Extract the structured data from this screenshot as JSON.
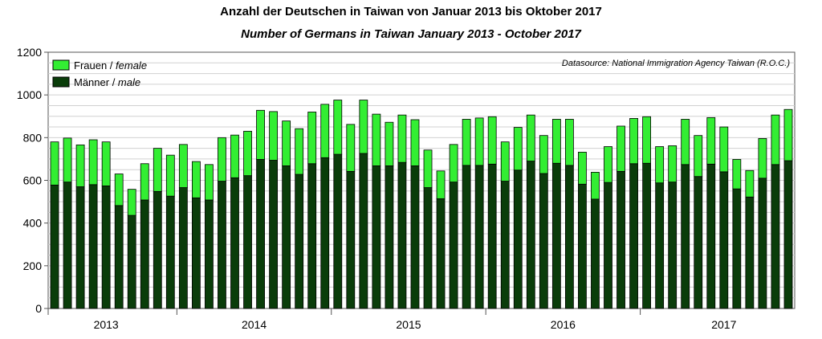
{
  "chart_data": {
    "type": "bar",
    "stacked": true,
    "title": "Anzahl der Deutschen in Taiwan von Januar 2013 bis Oktober 2017",
    "subtitle": "Number of Germans in Taiwan January 2013 - October 2017",
    "source": "Datasource: National Immigration Agency Taiwan (R.O.C.)",
    "ylim": [
      0,
      1200
    ],
    "yticks": [
      "0",
      "200",
      "400",
      "600",
      "800",
      "1000",
      "1200"
    ],
    "year_labels": [
      "2013",
      "2014",
      "2015",
      "2016",
      "2017"
    ],
    "legend_position": "top-left",
    "grid": true,
    "colors": {
      "female": "#33ee33",
      "male": "#0a3d0a",
      "border": "#000000"
    },
    "series": [
      {
        "name": "Männer / male",
        "legend_main": "Männer / ",
        "legend_italic": "male",
        "values": [
          578,
          592,
          570,
          580,
          574,
          482,
          436,
          508,
          548,
          526,
          566,
          518,
          508,
          596,
          612,
          622,
          698,
          694,
          668,
          628,
          678,
          706,
          722,
          642,
          726,
          668,
          668,
          684,
          668,
          566,
          514,
          592,
          670,
          670,
          676,
          596,
          648,
          690,
          632,
          680,
          670,
          582,
          512,
          590,
          642,
          678,
          680,
          588,
          592,
          674,
          618,
          676,
          640,
          560,
          522,
          610,
          674,
          692
        ]
      },
      {
        "name": "Frauen / female",
        "legend_main": "Frauen / ",
        "legend_italic": "female",
        "values": [
          202,
          206,
          196,
          210,
          206,
          148,
          122,
          170,
          202,
          192,
          202,
          170,
          166,
          204,
          200,
          208,
          230,
          228,
          210,
          214,
          242,
          250,
          254,
          220,
          250,
          242,
          204,
          222,
          216,
          176,
          130,
          176,
          216,
          222,
          222,
          184,
          200,
          216,
          178,
          206,
          216,
          150,
          126,
          168,
          212,
          212,
          218,
          170,
          170,
          212,
          192,
          218,
          210,
          138,
          124,
          186,
          232,
          240
        ]
      }
    ]
  }
}
